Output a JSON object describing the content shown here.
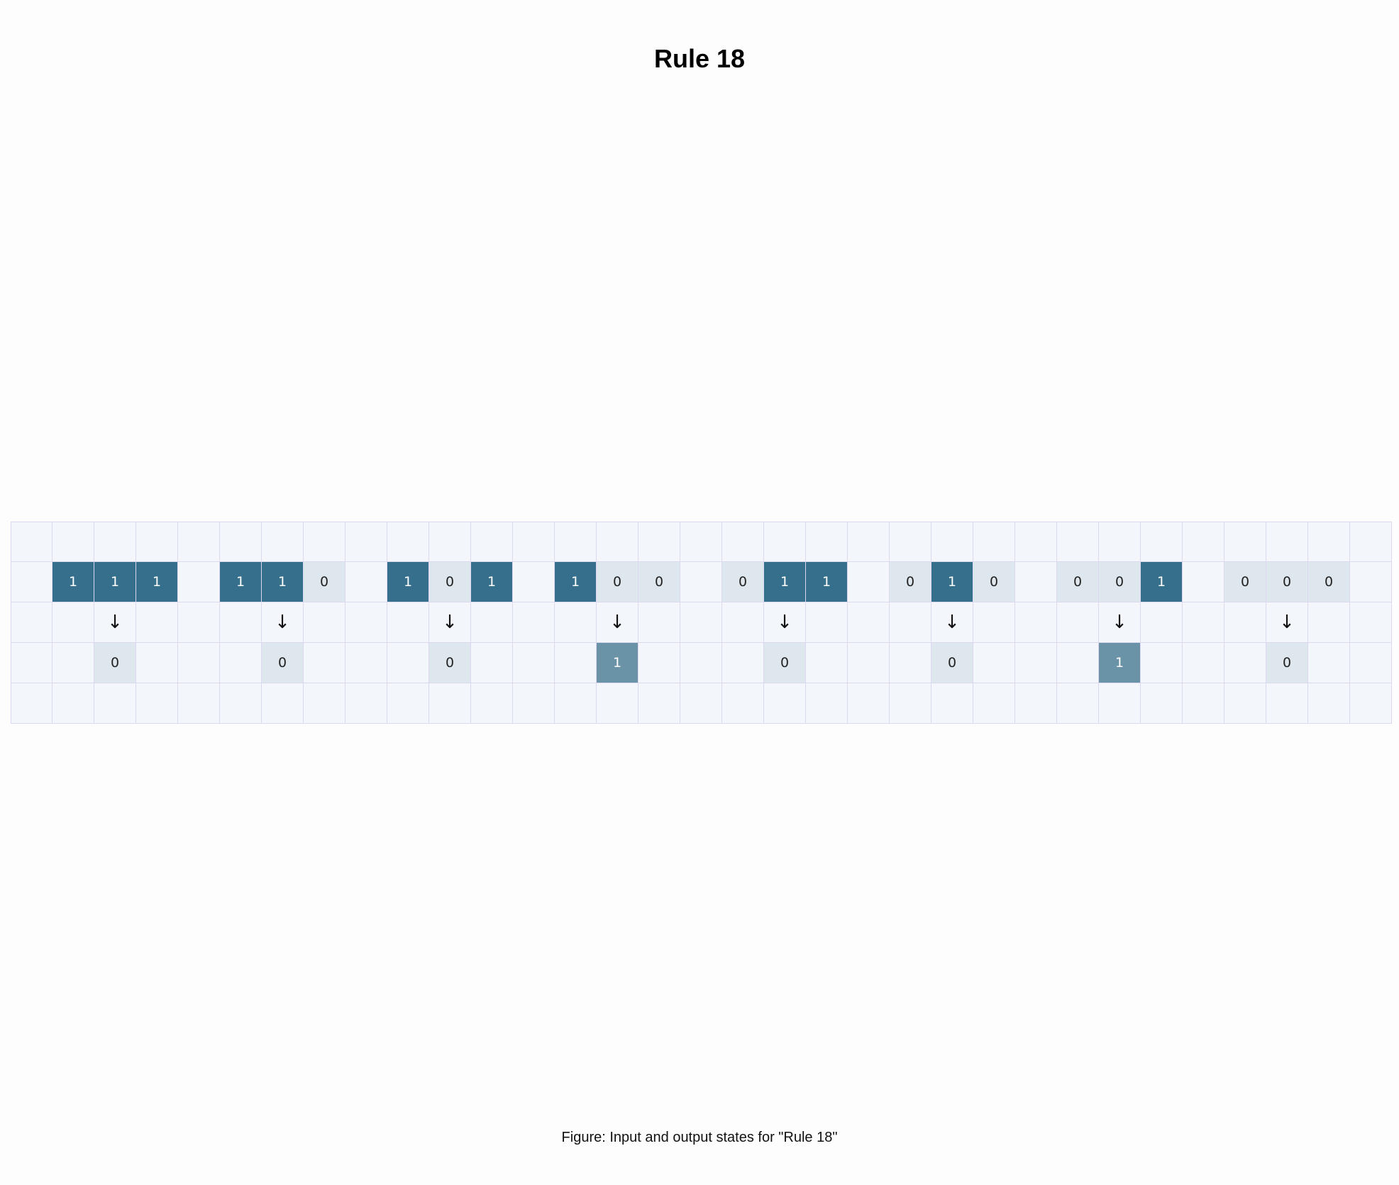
{
  "title": "Rule 18",
  "caption": "Figure: Input and output states for \"Rule 18\"",
  "colors": {
    "background": "#fdfdfd",
    "cell_empty": "#f3f7fb",
    "cell_zero": "#dfe7ee",
    "input_one": "#356f8c",
    "output_one": "#6b93a7",
    "grid_line": "#dcd8ef"
  },
  "arrow_symbol": "↓",
  "rules": [
    {
      "input": [
        "1",
        "1",
        "1"
      ],
      "output": "0"
    },
    {
      "input": [
        "1",
        "1",
        "0"
      ],
      "output": "0"
    },
    {
      "input": [
        "1",
        "0",
        "1"
      ],
      "output": "0"
    },
    {
      "input": [
        "1",
        "0",
        "0"
      ],
      "output": "1"
    },
    {
      "input": [
        "0",
        "1",
        "1"
      ],
      "output": "0"
    },
    {
      "input": [
        "0",
        "1",
        "0"
      ],
      "output": "0"
    },
    {
      "input": [
        "0",
        "0",
        "1"
      ],
      "output": "1"
    },
    {
      "input": [
        "0",
        "0",
        "0"
      ],
      "output": "0"
    }
  ]
}
